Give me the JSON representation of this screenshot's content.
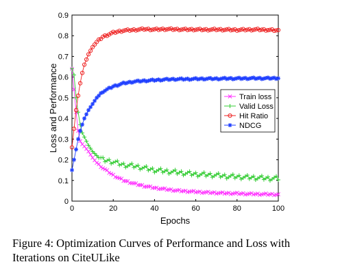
{
  "chart_data": {
    "type": "line",
    "xlabel": "Epochs",
    "ylabel": "Loss and Performance",
    "xlim": [
      0,
      100
    ],
    "ylim": [
      0,
      0.9
    ],
    "xticks": [
      "0",
      "20",
      "40",
      "60",
      "80",
      "100"
    ],
    "yticks": [
      "0",
      "0.1",
      "0.2",
      "0.3",
      "0.4",
      "0.5",
      "0.6",
      "0.7",
      "0.8",
      "0.9"
    ],
    "legend_position": "right-middle",
    "grid": false,
    "series": [
      {
        "name": "Train loss",
        "color": "#ff33ff",
        "marker": "x",
        "x": [
          0,
          1,
          2,
          3,
          4,
          5,
          6,
          8,
          10,
          12,
          15,
          20,
          25,
          30,
          35,
          40,
          45,
          50,
          55,
          60,
          65,
          70,
          75,
          80,
          85,
          90,
          95,
          100
        ],
        "values": [
          0.64,
          0.54,
          0.43,
          0.34,
          0.29,
          0.275,
          0.265,
          0.24,
          0.21,
          0.185,
          0.16,
          0.125,
          0.1,
          0.085,
          0.073,
          0.064,
          0.058,
          0.052,
          0.048,
          0.045,
          0.042,
          0.04,
          0.038,
          0.037,
          0.035,
          0.034,
          0.033,
          0.032
        ]
      },
      {
        "name": "Valid Loss",
        "color": "#33cc33",
        "marker": "+",
        "x": [
          0,
          1,
          2,
          3,
          4,
          5,
          6,
          8,
          10,
          12,
          15,
          20,
          25,
          30,
          35,
          40,
          45,
          50,
          55,
          60,
          65,
          70,
          75,
          80,
          85,
          90,
          95,
          100
        ],
        "values": [
          0.64,
          0.61,
          0.5,
          0.43,
          0.37,
          0.33,
          0.31,
          0.27,
          0.24,
          0.22,
          0.2,
          0.19,
          0.175,
          0.17,
          0.16,
          0.15,
          0.145,
          0.14,
          0.135,
          0.13,
          0.128,
          0.125,
          0.12,
          0.118,
          0.115,
          0.113,
          0.11,
          0.11
        ]
      },
      {
        "name": "Hit Ratio",
        "color": "#ee2222",
        "marker": "o",
        "x": [
          0,
          1,
          2,
          3,
          4,
          5,
          6,
          8,
          10,
          12,
          15,
          20,
          25,
          30,
          35,
          40,
          45,
          50,
          55,
          60,
          65,
          70,
          75,
          80,
          85,
          90,
          95,
          100
        ],
        "values": [
          0.26,
          0.35,
          0.44,
          0.51,
          0.57,
          0.62,
          0.66,
          0.71,
          0.745,
          0.77,
          0.795,
          0.815,
          0.825,
          0.828,
          0.832,
          0.83,
          0.832,
          0.831,
          0.83,
          0.83,
          0.829,
          0.83,
          0.829,
          0.828,
          0.829,
          0.83,
          0.828,
          0.825
        ]
      },
      {
        "name": "NDCG",
        "color": "#1f3fff",
        "marker": "*",
        "x": [
          0,
          1,
          2,
          3,
          4,
          5,
          6,
          8,
          10,
          12,
          15,
          20,
          25,
          30,
          35,
          40,
          45,
          50,
          55,
          60,
          65,
          70,
          75,
          80,
          85,
          90,
          95,
          100
        ],
        "values": [
          0.15,
          0.2,
          0.25,
          0.3,
          0.34,
          0.37,
          0.4,
          0.44,
          0.47,
          0.5,
          0.53,
          0.555,
          0.57,
          0.578,
          0.582,
          0.585,
          0.588,
          0.59,
          0.59,
          0.591,
          0.592,
          0.592,
          0.593,
          0.593,
          0.594,
          0.594,
          0.594,
          0.595
        ]
      }
    ]
  },
  "caption": {
    "text": "Figure 4: Optimization Curves of Performance and Loss with Iterations on CiteULike"
  }
}
